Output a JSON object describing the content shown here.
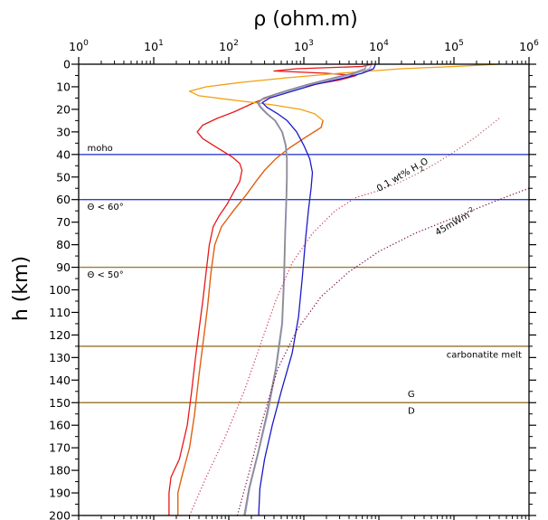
{
  "chart_data": {
    "type": "line",
    "title": "",
    "xlabel": "ρ (ohm.m)",
    "ylabel": "h (km)",
    "x_scale": "log",
    "x_ticks": [
      1,
      10,
      100,
      1000,
      10000,
      100000,
      1000000
    ],
    "x_tick_labels": [
      {
        "base": "10",
        "exp": "0"
      },
      {
        "base": "10",
        "exp": "1"
      },
      {
        "base": "10",
        "exp": "2"
      },
      {
        "base": "10",
        "exp": "3"
      },
      {
        "base": "10",
        "exp": "4"
      },
      {
        "base": "10",
        "exp": "5"
      },
      {
        "base": "10",
        "exp": "6"
      }
    ],
    "xlim": [
      1,
      1000000
    ],
    "ylim": [
      0,
      200
    ],
    "y_inverted": true,
    "y_ticks": [
      0,
      10,
      20,
      30,
      40,
      50,
      60,
      70,
      80,
      90,
      100,
      110,
      120,
      130,
      140,
      150,
      160,
      170,
      180,
      190,
      200
    ],
    "grid": false,
    "legend": "none",
    "series": [
      {
        "color": "#e8181a",
        "style": "solid",
        "points": [
          [
            8000,
            0
          ],
          [
            6000,
            1
          ],
          [
            800,
            2
          ],
          [
            400,
            3
          ],
          [
            2000,
            4
          ],
          [
            5000,
            5
          ],
          [
            3000,
            7
          ],
          [
            900,
            10
          ],
          [
            450,
            13
          ],
          [
            220,
            17
          ],
          [
            120,
            21
          ],
          [
            70,
            24
          ],
          [
            45,
            27
          ],
          [
            38,
            30
          ],
          [
            45,
            33
          ],
          [
            70,
            37
          ],
          [
            110,
            41
          ],
          [
            140,
            44
          ],
          [
            150,
            47
          ],
          [
            140,
            52
          ],
          [
            115,
            57
          ],
          [
            95,
            62
          ],
          [
            75,
            67
          ],
          [
            62,
            72
          ],
          [
            55,
            80
          ],
          [
            50,
            92
          ],
          [
            45,
            105
          ],
          [
            40,
            118
          ],
          [
            36,
            130
          ],
          [
            32,
            145
          ],
          [
            28,
            160
          ],
          [
            22,
            175
          ],
          [
            17,
            183
          ],
          [
            16,
            190
          ],
          [
            16,
            200
          ]
        ]
      },
      {
        "color": "#f2a00f",
        "style": "solid",
        "points": [
          [
            400000,
            0
          ],
          [
            100000,
            1
          ],
          [
            20000,
            2
          ],
          [
            3000,
            4
          ],
          [
            600,
            6
          ],
          [
            150,
            8
          ],
          [
            50,
            10
          ],
          [
            30,
            12
          ],
          [
            40,
            14
          ],
          [
            120,
            16
          ],
          [
            380,
            18
          ],
          [
            900,
            20
          ],
          [
            1400,
            22
          ],
          [
            1800,
            25
          ],
          [
            1700,
            28
          ],
          [
            1100,
            32
          ],
          [
            650,
            37
          ],
          [
            420,
            42
          ],
          [
            300,
            47
          ],
          [
            230,
            52
          ],
          [
            170,
            58
          ],
          [
            115,
            65
          ],
          [
            80,
            72
          ],
          [
            65,
            80
          ],
          [
            58,
            92
          ],
          [
            52,
            108
          ],
          [
            46,
            122
          ],
          [
            40,
            138
          ],
          [
            35,
            155
          ],
          [
            30,
            170
          ],
          [
            24,
            182
          ],
          [
            21,
            190
          ],
          [
            21,
            200
          ]
        ]
      },
      {
        "color": "#e0601a",
        "style": "solid",
        "points": [
          [
            1800,
            25
          ],
          [
            1700,
            28
          ],
          [
            1100,
            32
          ],
          [
            650,
            37
          ],
          [
            420,
            42
          ],
          [
            300,
            47
          ],
          [
            230,
            52
          ],
          [
            170,
            58
          ],
          [
            115,
            65
          ],
          [
            80,
            72
          ],
          [
            65,
            80
          ],
          [
            58,
            92
          ],
          [
            52,
            108
          ],
          [
            46,
            122
          ],
          [
            40,
            138
          ],
          [
            35,
            155
          ],
          [
            30,
            170
          ],
          [
            24,
            182
          ],
          [
            21,
            190
          ],
          [
            21,
            200
          ]
        ]
      },
      {
        "color": "#1a1acc",
        "style": "solid",
        "points": [
          [
            9000,
            0
          ],
          [
            8500,
            2
          ],
          [
            6000,
            4
          ],
          [
            3500,
            6
          ],
          [
            1400,
            9
          ],
          [
            700,
            12
          ],
          [
            350,
            15
          ],
          [
            280,
            17
          ],
          [
            320,
            19
          ],
          [
            450,
            22
          ],
          [
            600,
            25
          ],
          [
            800,
            30
          ],
          [
            1000,
            36
          ],
          [
            1200,
            42
          ],
          [
            1300,
            48
          ],
          [
            1250,
            55
          ],
          [
            1150,
            65
          ],
          [
            1050,
            78
          ],
          [
            950,
            95
          ],
          [
            850,
            112
          ],
          [
            700,
            128
          ],
          [
            500,
            145
          ],
          [
            380,
            160
          ],
          [
            300,
            175
          ],
          [
            260,
            188
          ],
          [
            250,
            200
          ]
        ]
      },
      {
        "color": "#9a9ad0",
        "style": "solid",
        "points": [
          [
            8000,
            0
          ],
          [
            7500,
            2
          ],
          [
            5000,
            4
          ],
          [
            2800,
            6
          ],
          [
            1200,
            9
          ],
          [
            600,
            12
          ],
          [
            300,
            15
          ],
          [
            250,
            17
          ],
          [
            270,
            19
          ],
          [
            330,
            22
          ],
          [
            420,
            25
          ],
          [
            520,
            30
          ],
          [
            580,
            36
          ],
          [
            600,
            42
          ],
          [
            600,
            50
          ],
          [
            590,
            60
          ],
          [
            570,
            75
          ],
          [
            550,
            95
          ],
          [
            520,
            115
          ],
          [
            430,
            135
          ],
          [
            330,
            155
          ],
          [
            250,
            172
          ],
          [
            190,
            188
          ],
          [
            165,
            200
          ]
        ]
      },
      {
        "color": "#8a8a8a",
        "style": "solid",
        "points": [
          [
            7000,
            0
          ],
          [
            6500,
            2
          ],
          [
            4500,
            4
          ],
          [
            2500,
            6
          ],
          [
            1100,
            9
          ],
          [
            550,
            12
          ],
          [
            290,
            15
          ],
          [
            240,
            17
          ],
          [
            260,
            19
          ],
          [
            320,
            22
          ],
          [
            410,
            25
          ],
          [
            510,
            30
          ],
          [
            570,
            36
          ],
          [
            590,
            42
          ],
          [
            590,
            50
          ],
          [
            580,
            60
          ],
          [
            560,
            75
          ],
          [
            540,
            95
          ],
          [
            510,
            115
          ],
          [
            420,
            135
          ],
          [
            320,
            155
          ],
          [
            245,
            172
          ],
          [
            185,
            188
          ],
          [
            160,
            200
          ]
        ]
      },
      {
        "color": "#d03050",
        "style": "dotted",
        "points": [
          [
            30,
            200
          ],
          [
            50,
            183
          ],
          [
            90,
            165
          ],
          [
            160,
            145
          ],
          [
            260,
            125
          ],
          [
            420,
            105
          ],
          [
            700,
            88
          ],
          [
            1300,
            75
          ],
          [
            2600,
            65
          ],
          [
            5000,
            59
          ],
          [
            10000,
            56
          ]
        ]
      },
      {
        "color": "#b06060",
        "style": "dotted",
        "points": [
          [
            10000,
            56
          ],
          [
            20000,
            52
          ],
          [
            40000,
            47
          ],
          [
            90000,
            40
          ],
          [
            200000,
            32
          ],
          [
            400000,
            24
          ]
        ]
      },
      {
        "color": "#700040",
        "style": "dotted",
        "points": [
          [
            130,
            200
          ],
          [
            190,
            180
          ],
          [
            280,
            158
          ],
          [
            450,
            135
          ],
          [
            800,
            118
          ],
          [
            1700,
            103
          ],
          [
            4000,
            92
          ],
          [
            10000,
            83
          ],
          [
            30000,
            75
          ],
          [
            100000,
            68
          ],
          [
            400000,
            60
          ],
          [
            1000000,
            55
          ]
        ]
      }
    ],
    "reference_lines": [
      {
        "y": 40,
        "color": "#2f3fd0"
      },
      {
        "y": 60,
        "color": "#2f3fd0"
      },
      {
        "y": 90,
        "color": "#9a7f3a"
      },
      {
        "y": 125,
        "color": "#9a7f3a"
      },
      {
        "y": 150,
        "color": "#9a7f3a"
      }
    ],
    "annotations": [
      {
        "text": "moho",
        "x": 1.3,
        "y": 38.5,
        "anchor": "start",
        "rotate": 0
      },
      {
        "text": "Θ < 60°",
        "x": 1.3,
        "y": 64.5,
        "anchor": "start",
        "rotate": 0
      },
      {
        "text": "Θ < 50°",
        "x": 1.3,
        "y": 94.5,
        "anchor": "start",
        "rotate": 0
      },
      {
        "text": "carbonatite melt",
        "x": 800000,
        "y": 130,
        "anchor": "end",
        "rotate": 0
      },
      {
        "text": "G",
        "x": 27000,
        "y": 147.5,
        "anchor": "middle",
        "rotate": 0
      },
      {
        "text": "D",
        "x": 27000,
        "y": 155,
        "anchor": "middle",
        "rotate": 0
      },
      {
        "text": "0.1 wt% H",
        "sub": "2",
        "tail": "O",
        "x": 10000,
        "y": 56.5,
        "anchor": "start",
        "rotate": -30
      },
      {
        "text": "45mWm",
        "sup": "-2",
        "x": 60000,
        "y": 76,
        "anchor": "start",
        "rotate": -30
      }
    ],
    "colors": {
      "axis": "#000000",
      "background": "#ffffff"
    }
  }
}
